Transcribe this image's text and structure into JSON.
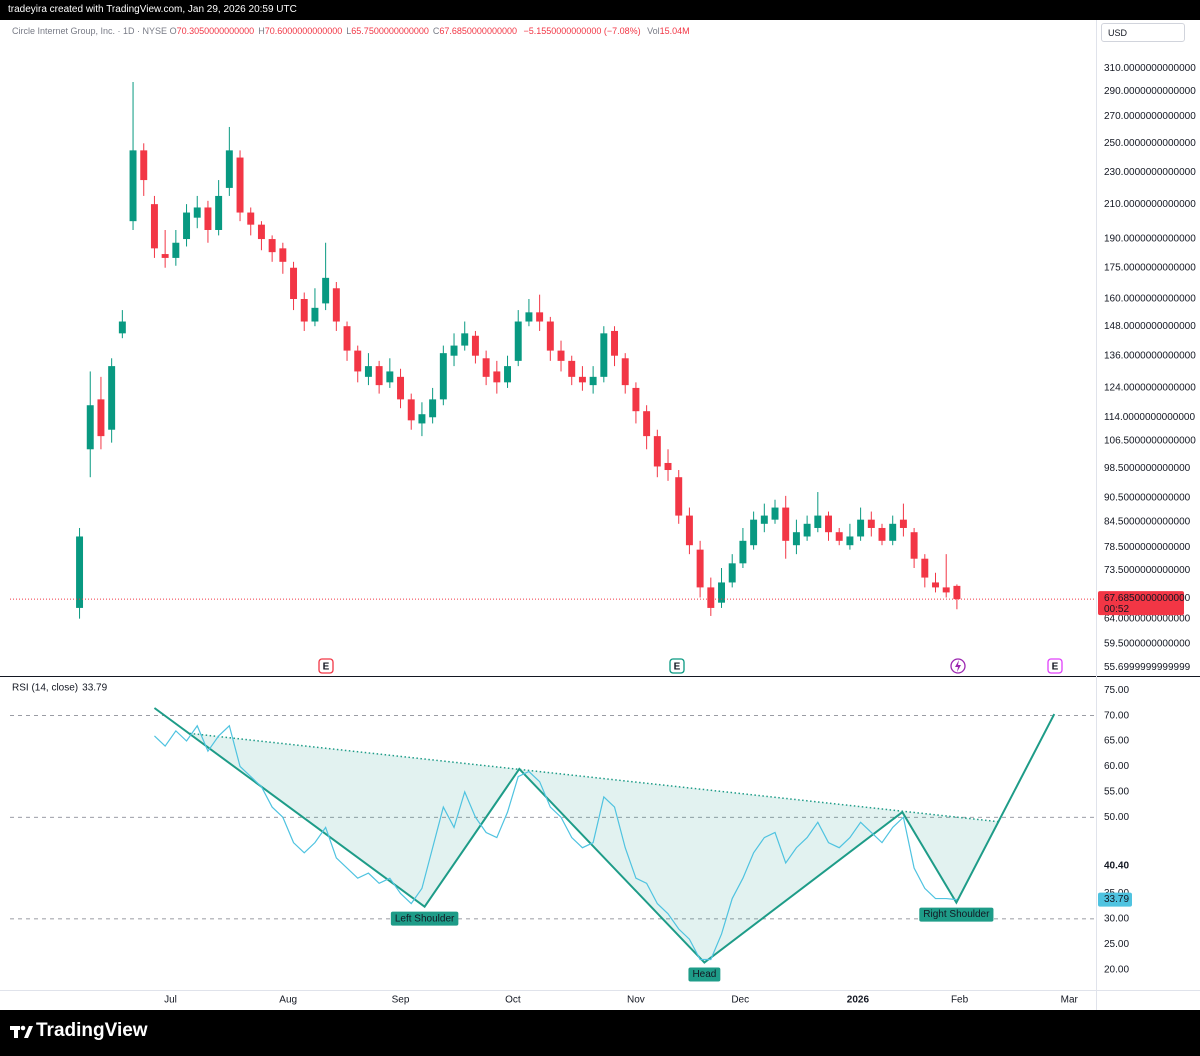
{
  "header": {
    "title": "tradeyira created with TradingView.com, Jan 29, 2026 20:59 UTC"
  },
  "legend": {
    "symbol": "Circle Internet Group, Inc. · 1D · NYSE",
    "items": [
      {
        "key": "O",
        "value": "70.3050000000000"
      },
      {
        "key": "H",
        "value": "70.6000000000000"
      },
      {
        "key": "L",
        "value": "65.7500000000000"
      },
      {
        "key": "C",
        "value": "67.6850000000000"
      }
    ],
    "change": "−5.1550000000000 (−7.08%)",
    "volume_key": "Vol",
    "volume": "15.04M"
  },
  "currency": "USD",
  "footer": {
    "brand": "TradingView"
  },
  "chart_data": [
    {
      "type": "candlestick",
      "log_scale": true,
      "grid": false,
      "up_color": "#089981",
      "down_color": "#f23645",
      "x": [
        0,
        2,
        4,
        6,
        8,
        10,
        12,
        14,
        16,
        18,
        20,
        22,
        24,
        26,
        28,
        30,
        32,
        34,
        36,
        38,
        40,
        42,
        44,
        46,
        48,
        50,
        52,
        54,
        56,
        58,
        60,
        62,
        64,
        66,
        68,
        70,
        72,
        74,
        76,
        78,
        80,
        82,
        84,
        86,
        88,
        90,
        92,
        94,
        96,
        98,
        100,
        102,
        104,
        106,
        108,
        110,
        112,
        114,
        116,
        118,
        120,
        122,
        124,
        126,
        128,
        130,
        132,
        134,
        136,
        138,
        140,
        142,
        144,
        146,
        148,
        150,
        152,
        154,
        156,
        158,
        160,
        162,
        164
      ],
      "open": [
        66,
        104,
        120,
        110,
        145,
        200,
        245,
        210,
        182,
        180,
        190,
        202,
        208,
        195,
        220,
        240,
        205,
        198,
        190,
        185,
        175,
        160,
        150,
        158,
        165,
        148,
        138,
        128,
        132,
        126,
        128,
        120,
        112,
        114,
        120,
        136,
        140,
        144,
        135,
        130,
        126,
        134,
        150,
        154,
        150,
        138,
        134,
        128,
        125,
        128,
        146,
        135,
        124,
        116,
        108,
        100,
        96,
        86,
        78,
        70,
        67,
        71,
        75,
        79,
        84,
        85,
        88,
        79,
        81,
        83,
        86,
        82,
        79,
        81,
        85,
        83,
        80,
        85,
        82,
        76,
        71,
        70,
        70.305
      ],
      "high": [
        83,
        130,
        128,
        135,
        155,
        298,
        250,
        215,
        195,
        195,
        210,
        215,
        212,
        225,
        262,
        245,
        208,
        200,
        192,
        188,
        178,
        163,
        165,
        188,
        168,
        150,
        140,
        137,
        134,
        135,
        131,
        122,
        119,
        124,
        140,
        145,
        150,
        146,
        138,
        134,
        136,
        155,
        160,
        162,
        152,
        142,
        136,
        132,
        132,
        148,
        148,
        137,
        126,
        118,
        110,
        104,
        98,
        88,
        80,
        72,
        74,
        77,
        83,
        87,
        89,
        90,
        91,
        85,
        86,
        92,
        87,
        83,
        84,
        88,
        87,
        84,
        86,
        89,
        83,
        77,
        73,
        77,
        70.6
      ],
      "low": [
        64,
        96,
        104,
        106,
        143,
        195,
        215,
        180,
        175,
        176,
        186,
        196,
        188,
        192,
        215,
        200,
        192,
        184,
        178,
        172,
        155,
        146,
        148,
        155,
        146,
        134,
        126,
        125,
        122,
        124,
        117,
        110,
        108,
        112,
        118,
        132,
        138,
        133,
        125,
        122,
        124,
        132,
        148,
        146,
        134,
        130,
        125,
        123,
        122,
        126,
        132,
        122,
        112,
        104,
        96,
        95,
        84,
        77,
        68,
        64.5,
        66,
        70,
        74,
        78,
        82,
        84,
        76,
        77,
        80,
        82,
        80,
        79,
        78,
        80,
        81,
        79,
        79,
        81,
        74,
        70,
        69,
        68,
        65.75
      ],
      "close": [
        81,
        118,
        108,
        132,
        150,
        245,
        225,
        185,
        180,
        188,
        205,
        208,
        195,
        215,
        245,
        205,
        198,
        190,
        183,
        178,
        160,
        150,
        156,
        170,
        150,
        138,
        130,
        132,
        125,
        130,
        120,
        113,
        115,
        120,
        137,
        140,
        145,
        136,
        128,
        126,
        132,
        150,
        154,
        150,
        138,
        134,
        128,
        126,
        128,
        145,
        136,
        125,
        116,
        108,
        99,
        98,
        86,
        79,
        70,
        66,
        71,
        75,
        80,
        85,
        86,
        88,
        80,
        82,
        84,
        86,
        82,
        80,
        81,
        85,
        83,
        80,
        84,
        83,
        76,
        72,
        70,
        69,
        67.685
      ],
      "last_label": "67.6850000000000",
      "countdown": "00:52",
      "xlim": [
        -13,
        190
      ],
      "ylim": [
        54.3,
        356
      ],
      "yticks": [
        {
          "value": 310,
          "label": "310.0000000000000"
        },
        {
          "value": 290,
          "label": "290.0000000000000"
        },
        {
          "value": 270,
          "label": "270.0000000000000"
        },
        {
          "value": 250,
          "label": "250.0000000000000"
        },
        {
          "value": 230,
          "label": "230.0000000000000"
        },
        {
          "value": 210,
          "label": "210.0000000000000"
        },
        {
          "value": 190,
          "label": "190.0000000000000"
        },
        {
          "value": 175,
          "label": "175.0000000000000"
        },
        {
          "value": 160,
          "label": "160.0000000000000"
        },
        {
          "value": 148,
          "label": "148.0000000000000"
        },
        {
          "value": 136,
          "label": "136.0000000000000"
        },
        {
          "value": 124,
          "label": "124.0000000000000"
        },
        {
          "value": 114,
          "label": "114.0000000000000"
        },
        {
          "value": 106.5,
          "label": "106.5000000000000"
        },
        {
          "value": 98.5,
          "label": "98.5000000000000"
        },
        {
          "value": 90.5,
          "label": "90.5000000000000"
        },
        {
          "value": 84.5,
          "label": "84.5000000000000"
        },
        {
          "value": 78.5,
          "label": "78.5000000000000"
        },
        {
          "value": 73.5,
          "label": "73.5000000000000"
        },
        {
          "value": 64,
          "label": "64.0000000000000"
        },
        {
          "value": 59.5,
          "label": "59.5000000000000"
        },
        {
          "value": 55.7,
          "label": "55.6999999999999"
        }
      ],
      "events": [
        {
          "label": "E",
          "color": "#f23645"
        },
        {
          "label": "E",
          "color": "#089981"
        },
        {
          "label": "E",
          "color": "#e040fb"
        }
      ]
    },
    {
      "type": "line",
      "title": "RSI (14, close)",
      "color": "#4fc3e0",
      "x": [
        14,
        16,
        18,
        20,
        22,
        24,
        26,
        28,
        30,
        32,
        34,
        36,
        38,
        40,
        42,
        44,
        46,
        48,
        50,
        52,
        54,
        56,
        58,
        60,
        62,
        64,
        66,
        68,
        70,
        72,
        74,
        76,
        78,
        80,
        82,
        84,
        86,
        88,
        90,
        92,
        94,
        96,
        98,
        100,
        102,
        104,
        106,
        108,
        110,
        112,
        114,
        116,
        118,
        120,
        122,
        124,
        126,
        128,
        130,
        132,
        134,
        136,
        138,
        140,
        142,
        144,
        146,
        148,
        150,
        152,
        154,
        156,
        158,
        160,
        162,
        164
      ],
      "values": [
        66,
        64,
        67,
        65,
        68,
        63,
        66,
        68,
        60,
        58,
        56,
        52,
        50,
        45,
        43,
        45,
        48,
        42,
        40,
        38,
        39,
        37,
        38,
        35,
        33,
        36,
        44,
        52,
        48,
        55,
        50,
        47,
        46,
        51,
        58,
        59,
        57,
        52,
        50,
        46,
        44,
        45,
        54,
        52,
        44,
        38,
        37,
        33,
        31,
        28,
        26,
        22,
        22,
        27,
        34,
        38,
        43,
        46,
        47,
        41,
        44,
        46,
        49,
        45,
        44,
        46,
        49,
        47,
        45,
        48,
        50,
        40,
        36,
        34,
        34,
        33.79
      ],
      "ma_label": {
        "value": 40.4,
        "label": "40.40"
      },
      "levels": [
        70,
        50,
        30
      ],
      "pattern": {
        "color": "#1e9c88",
        "x": [
          14,
          64.5,
          82.2,
          116.8,
          153.8,
          163.9,
          182.2
        ],
        "values": [
          71.5,
          32.4,
          59.5,
          21.4,
          51.0,
          33.2,
          70.3
        ],
        "labels": [
          "Left Shoulder",
          "Head",
          "Right Shoulder"
        ]
      },
      "neckline": {
        "x": [
          20.6,
          172
        ],
        "values": [
          66.5,
          49.1
        ]
      },
      "xlim": [
        -13,
        190
      ],
      "ylim": [
        16,
        77.6
      ],
      "yticks": [
        {
          "value": 75,
          "label": "75.00"
        },
        {
          "value": 70,
          "label": "70.00"
        },
        {
          "value": 65,
          "label": "65.00"
        },
        {
          "value": 60,
          "label": "60.00"
        },
        {
          "value": 55,
          "label": "55.00"
        },
        {
          "value": 50,
          "label": "50.00"
        },
        {
          "value": 35,
          "label": "35.00"
        },
        {
          "value": 30,
          "label": "30.00"
        },
        {
          "value": 25,
          "label": "25.00"
        },
        {
          "value": 20,
          "label": "20.00"
        }
      ],
      "xticks": [
        {
          "value": 17,
          "label": "Jul"
        },
        {
          "value": 39,
          "label": "Aug"
        },
        {
          "value": 60,
          "label": "Sep"
        },
        {
          "value": 81,
          "label": "Oct"
        },
        {
          "value": 104,
          "label": "Nov"
        },
        {
          "value": 123.5,
          "label": "Dec"
        },
        {
          "value": 145.5,
          "label": "2026"
        },
        {
          "value": 164.5,
          "label": "Feb"
        },
        {
          "value": 185,
          "label": "Mar"
        }
      ]
    }
  ]
}
